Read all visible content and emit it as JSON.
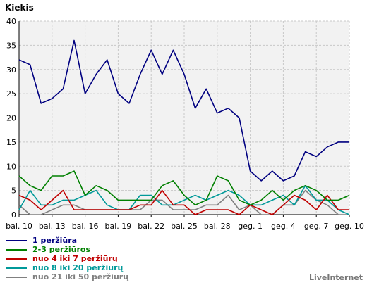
{
  "chart_data": {
    "type": "line",
    "title": "Kiekis",
    "ylim": [
      0,
      40
    ],
    "y_ticks": [
      0,
      5,
      10,
      15,
      20,
      25,
      30,
      35,
      40
    ],
    "grid": true,
    "x_tick_labels": [
      "bal. 10",
      "bal. 13",
      "bal. 16",
      "bal. 19",
      "bal. 22",
      "bal. 25",
      "bal. 28",
      "geg. 1",
      "geg. 4",
      "geg. 7",
      "geg. 10"
    ],
    "x_tick_step": 3,
    "series": [
      {
        "name": "1 peržiūra",
        "color": "#000080",
        "values": [
          32,
          31,
          23,
          24,
          26,
          36,
          25,
          29,
          32,
          25,
          23,
          29,
          34,
          29,
          34,
          29,
          22,
          26,
          21,
          22,
          20,
          9,
          7,
          9,
          7,
          8,
          13,
          12,
          14,
          15,
          15
        ]
      },
      {
        "name": "2-3 peržiūros",
        "color": "#008000",
        "values": [
          8,
          6,
          5,
          8,
          8,
          9,
          4,
          6,
          5,
          3,
          3,
          3,
          3,
          6,
          7,
          4,
          2,
          3,
          8,
          7,
          3,
          2,
          3,
          5,
          3,
          5,
          6,
          5,
          3,
          3,
          4
        ]
      },
      {
        "name": "nuo 4 iki 7 peržiūrų",
        "color": "#c00000",
        "values": [
          4,
          3,
          1,
          3,
          5,
          1,
          1,
          1,
          1,
          1,
          1,
          2,
          2,
          5,
          2,
          2,
          0,
          1,
          1,
          1,
          0,
          2,
          1,
          0,
          2,
          4,
          3,
          1,
          4,
          1,
          1
        ]
      },
      {
        "name": "nuo 8 iki 20 peržiūrų",
        "color": "#009999",
        "values": [
          1,
          5,
          2,
          2,
          3,
          3,
          4,
          5,
          2,
          1,
          1,
          4,
          4,
          2,
          2,
          3,
          4,
          3,
          4,
          5,
          4,
          2,
          2,
          3,
          4,
          2,
          6,
          3,
          3,
          1,
          0
        ]
      },
      {
        "name": "nuo 21 iki 50 peržiūrų",
        "color": "#808080",
        "values": [
          2,
          0,
          0,
          1,
          2,
          2,
          1,
          1,
          1,
          1,
          1,
          1,
          3,
          3,
          1,
          1,
          1,
          2,
          2,
          4,
          1,
          2,
          0,
          0,
          2,
          2,
          5,
          3,
          2,
          0,
          0
        ]
      }
    ]
  },
  "brand": "LiveInternet"
}
